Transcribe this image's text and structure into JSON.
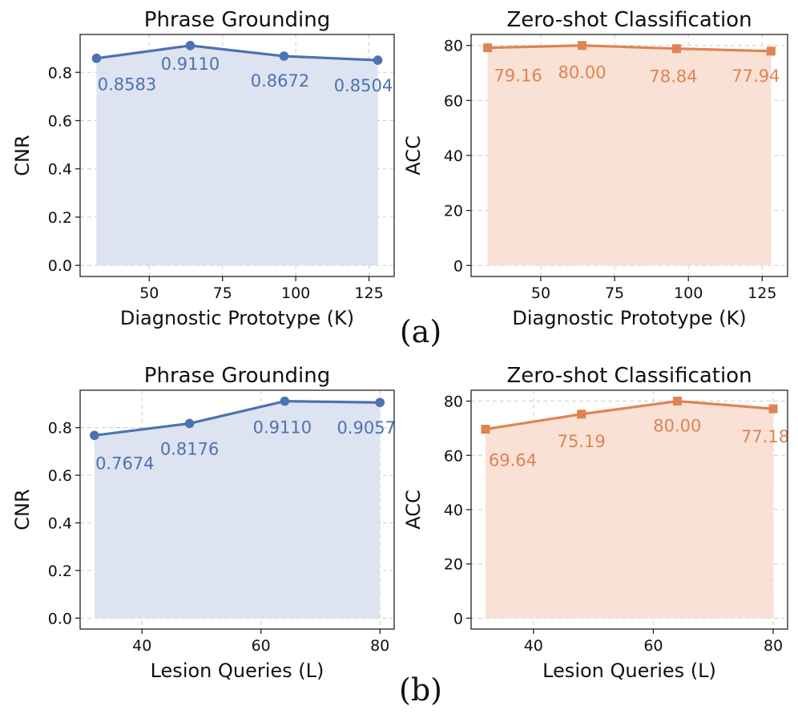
{
  "captions": [
    "(a)",
    "(b)"
  ],
  "colors": {
    "blue": "#4c72b0",
    "blue_fill": "#dde3f0",
    "orange": "#dd8452",
    "orange_fill": "#f9e1d5"
  },
  "chart_data": [
    {
      "type": "line",
      "title": "Phrase Grounding",
      "xlabel": "Diagnostic Prototype (K)",
      "ylabel": "CNR",
      "x": [
        32,
        64,
        96,
        128
      ],
      "values": [
        0.8583,
        0.911,
        0.8672,
        0.8504
      ],
      "labels": [
        "0.8583",
        "0.9110",
        "0.8672",
        "0.8504"
      ],
      "xlim": [
        26.4,
        133.6
      ],
      "ylim": [
        -0.046,
        0.957
      ],
      "xticks": [
        50,
        75,
        100,
        125
      ],
      "xtick_labels": [
        "50",
        "75",
        "100",
        "125"
      ],
      "yticks": [
        0,
        0.2,
        0.4,
        0.6,
        0.8
      ],
      "ytick_labels": [
        "0.0",
        "0.2",
        "0.4",
        "0.6",
        "0.8"
      ],
      "marker": "circle",
      "color": "blue",
      "grid": true,
      "filled": true
    },
    {
      "type": "line",
      "title": "Zero-shot Classification",
      "xlabel": "Diagnostic Prototype (K)",
      "ylabel": "ACC",
      "x": [
        32,
        64,
        96,
        128
      ],
      "values": [
        79.16,
        80.0,
        78.84,
        77.94
      ],
      "labels": [
        "79.16",
        "80.00",
        "78.84",
        "77.94"
      ],
      "xlim": [
        26.4,
        133.6
      ],
      "ylim": [
        -4.0,
        84.0
      ],
      "xticks": [
        50,
        75,
        100,
        125
      ],
      "xtick_labels": [
        "50",
        "75",
        "100",
        "125"
      ],
      "yticks": [
        0,
        20,
        40,
        60,
        80
      ],
      "ytick_labels": [
        "0",
        "20",
        "40",
        "60",
        "80"
      ],
      "marker": "square",
      "color": "orange",
      "grid": true,
      "filled": true
    },
    {
      "type": "line",
      "title": "Phrase Grounding",
      "xlabel": "Lesion Queries (L)",
      "ylabel": "CNR",
      "x": [
        32,
        48,
        64,
        80
      ],
      "values": [
        0.7674,
        0.8176,
        0.911,
        0.9057
      ],
      "labels": [
        "0.7674",
        "0.8176",
        "0.9110",
        "0.9057"
      ],
      "xlim": [
        29.6,
        82.4
      ],
      "ylim": [
        -0.046,
        0.957
      ],
      "xticks": [
        40,
        60,
        80
      ],
      "xtick_labels": [
        "40",
        "60",
        "80"
      ],
      "yticks": [
        0,
        0.2,
        0.4,
        0.6,
        0.8
      ],
      "ytick_labels": [
        "0.0",
        "0.2",
        "0.4",
        "0.6",
        "0.8"
      ],
      "marker": "circle",
      "color": "blue",
      "grid": true,
      "filled": true
    },
    {
      "type": "line",
      "title": "Zero-shot Classification",
      "xlabel": "Lesion Queries (L)",
      "ylabel": "ACC",
      "x": [
        32,
        48,
        64,
        80
      ],
      "values": [
        69.64,
        75.19,
        80.0,
        77.18
      ],
      "labels": [
        "69.64",
        "75.19",
        "80.00",
        "77.18"
      ],
      "xlim": [
        29.6,
        82.4
      ],
      "ylim": [
        -4.0,
        84.0
      ],
      "xticks": [
        40,
        60,
        80
      ],
      "xtick_labels": [
        "40",
        "60",
        "80"
      ],
      "yticks": [
        0,
        20,
        40,
        60,
        80
      ],
      "ytick_labels": [
        "0",
        "20",
        "40",
        "60",
        "80"
      ],
      "marker": "square",
      "color": "orange",
      "grid": true,
      "filled": true
    }
  ]
}
